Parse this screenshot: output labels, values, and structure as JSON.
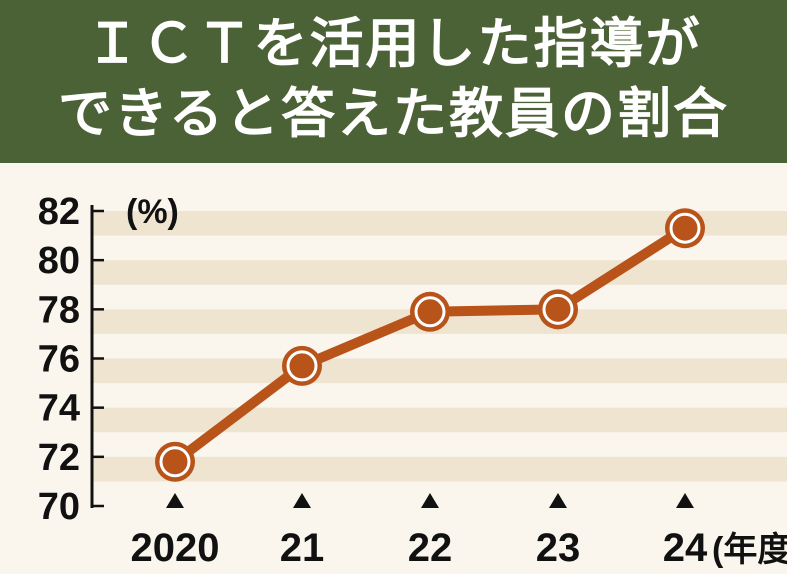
{
  "title": {
    "line1": "ＩＣＴを活用した指導が",
    "line2": "できると答えた教員の割合"
  },
  "chart_data": {
    "type": "line",
    "title": "ＩＣＴを活用した指導ができると答えた教員の割合",
    "unit_label": "(%)",
    "x_unit_label": "(年度)",
    "categories": [
      "2020",
      "21",
      "22",
      "23",
      "24"
    ],
    "values": [
      71.8,
      75.7,
      77.9,
      78.0,
      81.3
    ],
    "ylim": [
      70,
      82
    ],
    "y_ticks": [
      70,
      72,
      74,
      76,
      78,
      80,
      82
    ],
    "grid": "horizontal bands",
    "colors": {
      "title_bg": "#4b6136",
      "line": "#b8531a",
      "band": "#efe4d0",
      "background": "#faf6ee"
    }
  }
}
